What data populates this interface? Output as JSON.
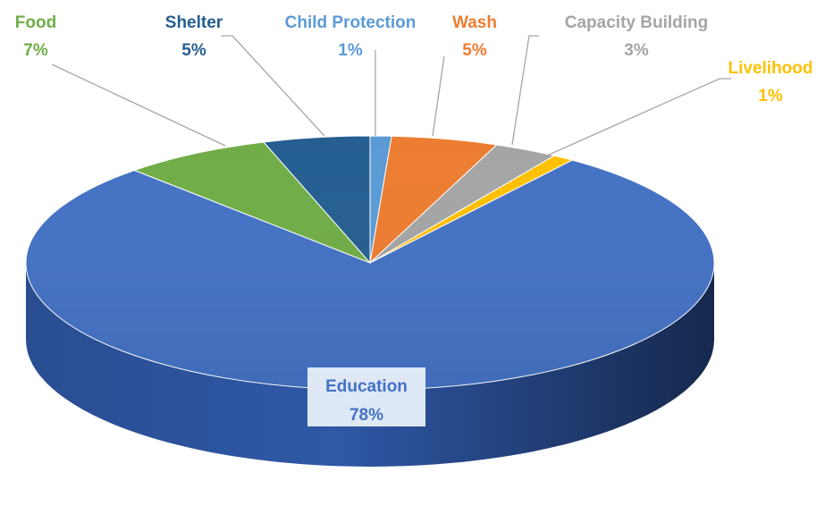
{
  "chart_data": {
    "type": "pie",
    "title": "",
    "slices": [
      {
        "label": "Education",
        "value": 78,
        "display": "78%",
        "color": "#4472C4"
      },
      {
        "label": "Food",
        "value": 7,
        "display": "7%",
        "color": "#70AD47"
      },
      {
        "label": "Shelter",
        "value": 5,
        "display": "5%",
        "color": "#255E91"
      },
      {
        "label": "Child Protection",
        "value": 1,
        "display": "1%",
        "color": "#5B9BD5"
      },
      {
        "label": "Wash",
        "value": 5,
        "display": "5%",
        "color": "#ED7D31"
      },
      {
        "label": "Capacity Building",
        "value": 3,
        "display": "3%",
        "color": "#A5A5A5"
      },
      {
        "label": "Livelihood",
        "value": 1,
        "display": "1%",
        "color": "#FFC000"
      }
    ],
    "style": "3d",
    "legend": "none",
    "data_labels": "outside with leader lines"
  }
}
